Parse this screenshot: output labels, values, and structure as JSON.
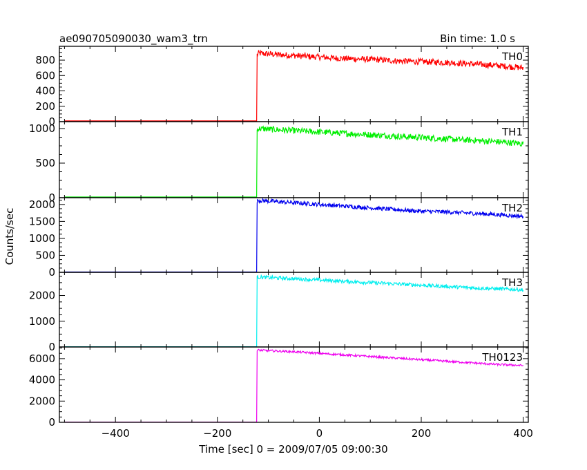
{
  "title_left": "ae090705090030_wam3_trn",
  "title_right": "Bin time: 1.0 s",
  "xlabel": "Time [sec] 0 = 2009/07/05 09:00:30",
  "ylabel": "Counts/sec",
  "chart_data": {
    "type": "line",
    "title": "ae090705090030_wam3_trn",
    "subtitle": "Bin time: 1.0 s",
    "xlabel": "Time [sec] 0 = 2009/07/05 09:00:30",
    "ylabel": "Counts/sec",
    "xlim": [
      -510,
      410
    ],
    "x_ticks": [
      -400,
      -200,
      0,
      200,
      400
    ],
    "onset_time": -122,
    "bin_time": 1.0,
    "panels": [
      {
        "name": "TH0",
        "color": "#ff0000",
        "ylim": [
          0,
          980
        ],
        "y_ticks": [
          0,
          200,
          400,
          600,
          800
        ],
        "x": [
          -500,
          -123,
          -122,
          -120,
          -100,
          -50,
          0,
          50,
          100,
          150,
          200,
          250,
          300,
          350,
          400
        ],
        "y": [
          10,
          10,
          870,
          890,
          880,
          860,
          840,
          820,
          810,
          790,
          780,
          770,
          750,
          730,
          700
        ],
        "noise": 40
      },
      {
        "name": "TH1",
        "color": "#00ee00",
        "ylim": [
          0,
          1100
        ],
        "y_ticks": [
          0,
          500,
          1000
        ],
        "x": [
          -500,
          -123,
          -122,
          -120,
          -100,
          -50,
          0,
          50,
          100,
          150,
          200,
          250,
          300,
          350,
          400
        ],
        "y": [
          10,
          10,
          980,
          1000,
          990,
          970,
          950,
          930,
          910,
          890,
          870,
          850,
          830,
          810,
          780
        ],
        "noise": 45
      },
      {
        "name": "TH2",
        "color": "#0000ee",
        "ylim": [
          0,
          2200
        ],
        "y_ticks": [
          0,
          500,
          1000,
          1500,
          2000
        ],
        "x": [
          -500,
          -123,
          -122,
          -120,
          -100,
          -50,
          0,
          50,
          100,
          150,
          200,
          250,
          300,
          350,
          400
        ],
        "y": [
          10,
          10,
          2100,
          2120,
          2100,
          2050,
          2000,
          1950,
          1900,
          1850,
          1800,
          1780,
          1740,
          1700,
          1650
        ],
        "noise": 60
      },
      {
        "name": "TH3",
        "color": "#00eeee",
        "ylim": [
          0,
          2900
        ],
        "y_ticks": [
          0,
          1000,
          2000
        ],
        "x": [
          -500,
          -123,
          -122,
          -120,
          -100,
          -50,
          0,
          50,
          100,
          150,
          200,
          250,
          300,
          350,
          400
        ],
        "y": [
          10,
          10,
          2700,
          2720,
          2700,
          2650,
          2600,
          2550,
          2500,
          2450,
          2400,
          2350,
          2300,
          2260,
          2220
        ],
        "noise": 70
      },
      {
        "name": "TH0123",
        "color": "#ee00ee",
        "ylim": [
          0,
          7100
        ],
        "y_ticks": [
          0,
          2000,
          4000,
          6000
        ],
        "x": [
          -500,
          -123,
          -122,
          -120,
          -100,
          -50,
          0,
          50,
          100,
          150,
          200,
          250,
          300,
          350,
          400
        ],
        "y": [
          20,
          20,
          6750,
          6800,
          6750,
          6650,
          6500,
          6350,
          6200,
          6050,
          5900,
          5750,
          5600,
          5450,
          5350
        ],
        "noise": 100
      }
    ]
  }
}
